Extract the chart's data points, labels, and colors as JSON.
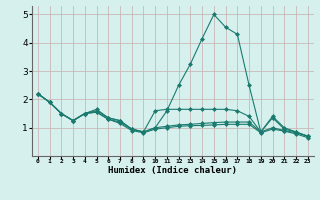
{
  "title": "",
  "xlabel": "Humidex (Indice chaleur)",
  "ylabel": "",
  "background_color": "#d6f0ee",
  "grid_color": "#c8b8b8",
  "line_color": "#1a7a6e",
  "xlim": [
    -0.5,
    23.5
  ],
  "ylim": [
    0,
    5.3
  ],
  "yticks": [
    1,
    2,
    3,
    4,
    5
  ],
  "xtick_labels": [
    "0",
    "1",
    "2",
    "3",
    "4",
    "5",
    "6",
    "7",
    "8",
    "9",
    "10",
    "11",
    "12",
    "13",
    "14",
    "15",
    "16",
    "17",
    "18",
    "19",
    "20",
    "21",
    "22",
    "23"
  ],
  "curves": [
    {
      "x": [
        0,
        1,
        2,
        3,
        4,
        5,
        6,
        7,
        8,
        9,
        10,
        11,
        12,
        13,
        14,
        15,
        16,
        17,
        18,
        19,
        20,
        21,
        22,
        23
      ],
      "y": [
        2.2,
        1.9,
        1.5,
        1.25,
        1.5,
        1.65,
        1.35,
        1.25,
        0.95,
        0.85,
        1.0,
        1.6,
        2.5,
        3.25,
        4.15,
        5.0,
        4.55,
        4.3,
        2.5,
        0.85,
        1.4,
        1.0,
        0.85,
        0.7
      ]
    },
    {
      "x": [
        0,
        1,
        2,
        3,
        4,
        5,
        6,
        7,
        8,
        9,
        10,
        11,
        12,
        13,
        14,
        15,
        16,
        17,
        18,
        19,
        20,
        21,
        22,
        23
      ],
      "y": [
        2.2,
        1.9,
        1.5,
        1.25,
        1.5,
        1.6,
        1.35,
        1.25,
        0.95,
        0.85,
        1.6,
        1.65,
        1.65,
        1.65,
        1.65,
        1.65,
        1.65,
        1.6,
        1.4,
        0.85,
        1.35,
        0.95,
        0.85,
        0.7
      ]
    },
    {
      "x": [
        0,
        1,
        2,
        3,
        4,
        5,
        6,
        7,
        8,
        9,
        10,
        11,
        12,
        13,
        14,
        15,
        16,
        17,
        18,
        19,
        20,
        21,
        22,
        23
      ],
      "y": [
        2.2,
        1.9,
        1.5,
        1.25,
        1.5,
        1.55,
        1.3,
        1.2,
        0.95,
        0.85,
        1.0,
        1.05,
        1.1,
        1.12,
        1.15,
        1.18,
        1.2,
        1.2,
        1.2,
        0.85,
        1.0,
        0.9,
        0.82,
        0.7
      ]
    },
    {
      "x": [
        0,
        1,
        2,
        3,
        4,
        5,
        6,
        7,
        8,
        9,
        10,
        11,
        12,
        13,
        14,
        15,
        16,
        17,
        18,
        19,
        20,
        21,
        22,
        23
      ],
      "y": [
        2.2,
        1.9,
        1.5,
        1.25,
        1.5,
        1.55,
        1.3,
        1.15,
        0.9,
        0.82,
        0.95,
        1.0,
        1.05,
        1.07,
        1.08,
        1.1,
        1.12,
        1.12,
        1.12,
        0.82,
        0.95,
        0.88,
        0.78,
        0.65
      ]
    }
  ]
}
